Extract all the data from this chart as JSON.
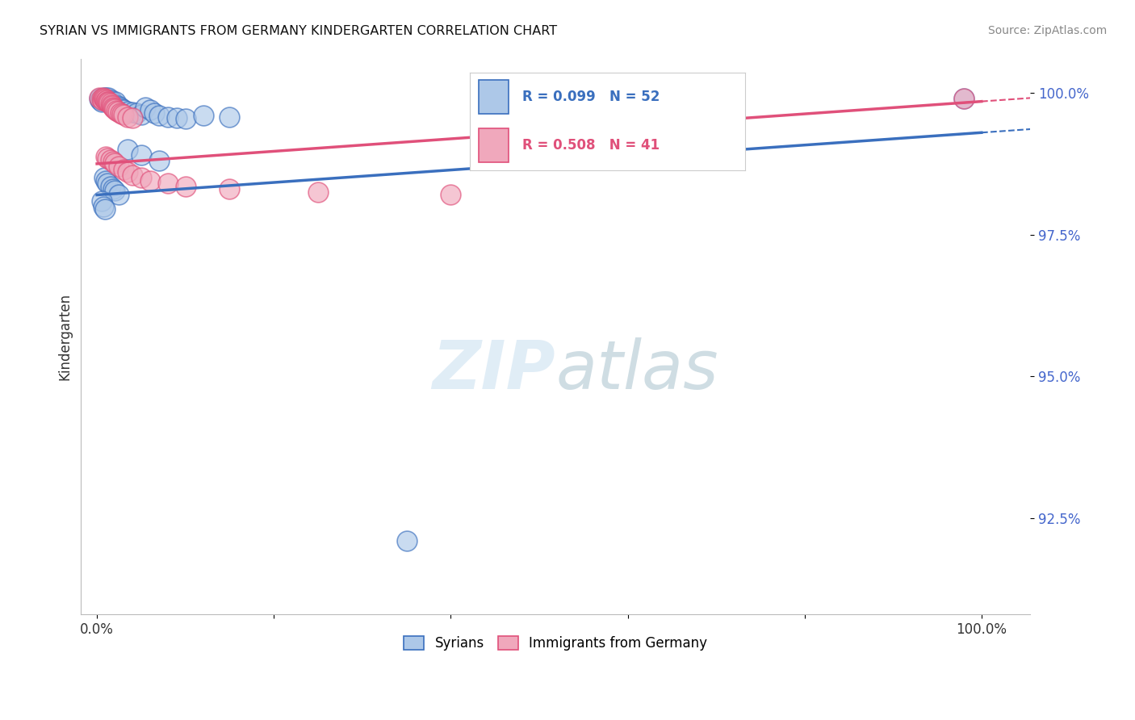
{
  "title": "SYRIAN VS IMMIGRANTS FROM GERMANY KINDERGARTEN CORRELATION CHART",
  "source": "Source: ZipAtlas.com",
  "ylabel": "Kindergarten",
  "ytick_labels": [
    "100.0%",
    "97.5%",
    "95.0%",
    "92.5%"
  ],
  "ytick_values": [
    1.0,
    0.975,
    0.95,
    0.925
  ],
  "R_syrians": 0.099,
  "N_syrians": 52,
  "R_germany": 0.508,
  "N_germany": 41,
  "syrians_color": "#adc8e8",
  "germany_color": "#f0a8bc",
  "line_syrians_color": "#3a6fbe",
  "line_germany_color": "#e0507a",
  "watermark_zip": "ZIP",
  "watermark_atlas": "atlas",
  "background_color": "#ffffff",
  "grid_color": "#c8c8c8",
  "syrians_x": [
    0.003,
    0.004,
    0.005,
    0.006,
    0.007,
    0.008,
    0.009,
    0.01,
    0.011,
    0.012,
    0.013,
    0.014,
    0.015,
    0.016,
    0.017,
    0.018,
    0.019,
    0.02,
    0.021,
    0.022,
    0.024,
    0.026,
    0.028,
    0.03,
    0.035,
    0.04,
    0.045,
    0.05,
    0.055,
    0.06,
    0.065,
    0.07,
    0.08,
    0.09,
    0.1,
    0.12,
    0.15,
    0.035,
    0.05,
    0.07,
    0.008,
    0.01,
    0.012,
    0.015,
    0.018,
    0.02,
    0.025,
    0.005,
    0.007,
    0.009,
    0.35,
    0.98
  ],
  "syrians_y": [
    0.999,
    0.9988,
    0.9985,
    0.999,
    0.9988,
    0.9992,
    0.9989,
    0.9991,
    0.9987,
    0.9986,
    0.9992,
    0.9984,
    0.9983,
    0.9988,
    0.9985,
    0.998,
    0.9982,
    0.9979,
    0.9984,
    0.9976,
    0.9978,
    0.9975,
    0.9972,
    0.997,
    0.9968,
    0.9966,
    0.9964,
    0.9962,
    0.9975,
    0.997,
    0.9965,
    0.996,
    0.9958,
    0.9956,
    0.9954,
    0.996,
    0.9958,
    0.99,
    0.989,
    0.988,
    0.985,
    0.9845,
    0.984,
    0.9835,
    0.983,
    0.9828,
    0.982,
    0.981,
    0.98,
    0.9795,
    0.921,
    0.999
  ],
  "germany_x": [
    0.003,
    0.005,
    0.006,
    0.007,
    0.008,
    0.009,
    0.01,
    0.011,
    0.012,
    0.013,
    0.014,
    0.015,
    0.016,
    0.017,
    0.018,
    0.019,
    0.02,
    0.022,
    0.024,
    0.026,
    0.028,
    0.03,
    0.035,
    0.04,
    0.01,
    0.012,
    0.015,
    0.018,
    0.02,
    0.025,
    0.03,
    0.035,
    0.04,
    0.05,
    0.06,
    0.08,
    0.1,
    0.15,
    0.25,
    0.4,
    0.98
  ],
  "germany_y": [
    0.9992,
    0.999,
    0.9988,
    0.9992,
    0.999,
    0.9989,
    0.9986,
    0.9988,
    0.9985,
    0.9984,
    0.9983,
    0.9981,
    0.9979,
    0.9977,
    0.9975,
    0.9973,
    0.9971,
    0.9969,
    0.9967,
    0.9965,
    0.9963,
    0.9962,
    0.9958,
    0.9956,
    0.9888,
    0.9885,
    0.9882,
    0.9879,
    0.9876,
    0.987,
    0.9865,
    0.986,
    0.9855,
    0.985,
    0.9845,
    0.984,
    0.9835,
    0.983,
    0.9825,
    0.982,
    0.999
  ]
}
